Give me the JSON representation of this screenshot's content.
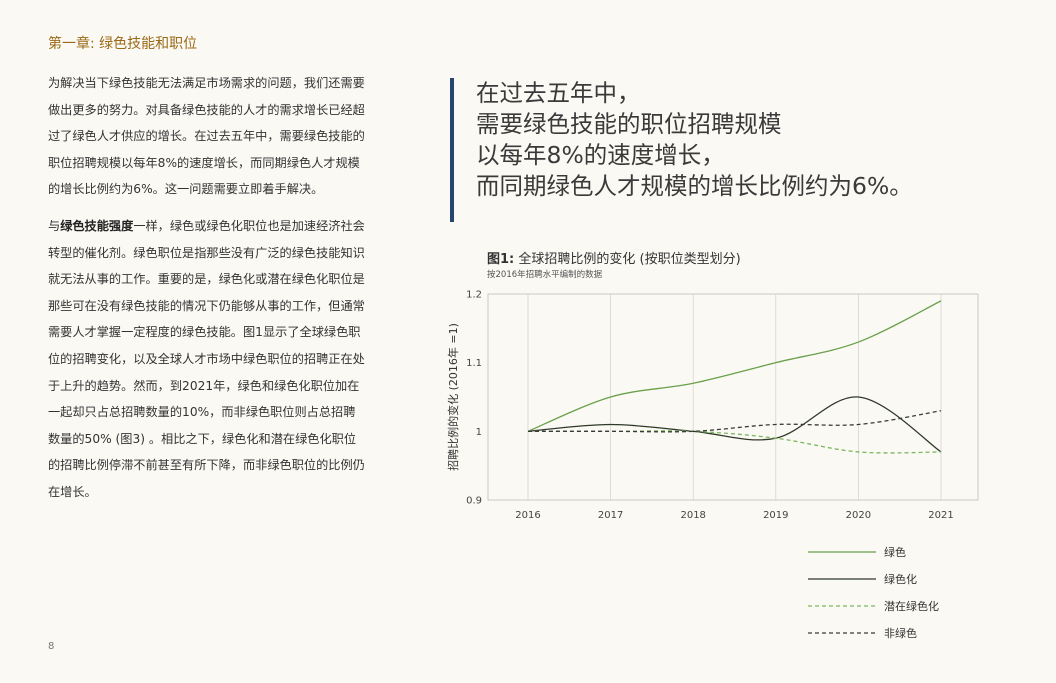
{
  "chapter_title": "第一章: 绿色技能和职位",
  "body": {
    "p1": "为解决当下绿色技能无法满足市场需求的问题，我们还需要做出更多的努力。对具备绿色技能的人才的需求增长已经超过了绿色人才供应的增长。在过去五年中，需要绿色技能的职位招聘规模以每年8%的速度增长，而同期绿色人才规模的增长比例约为6%。这一问题需要立即着手解决。",
    "p2_lead": "与",
    "p2_bold": "绿色技能强度",
    "p2_rest": "一样，绿色或绿色化职位也是加速经济社会转型的催化剂。绿色职位是指那些没有广泛的绿色技能知识就无法从事的工作。重要的是，绿色化或潜在绿色化职位是那些可在没有绿色技能的情况下仍能够从事的工作，但通常需要人才掌握一定程度的绿色技能。图1显示了全球绿色职位的招聘变化，以及全球人才市场中绿色职位的招聘正在处于上升的趋势。然而，到2021年，绿色和绿色化职位加在一起却只占总招聘数量的10%，而非绿色职位则占总招聘数量的50% (图3) 。相比之下，绿色化和潜在绿色化职位的招聘比例停滞不前甚至有所下降，而非绿色职位的比例仍在增长。"
  },
  "pull_quote": [
    "在过去五年中，",
    "需要绿色技能的职位招聘规模",
    "以每年8%的速度增长，",
    "而同期绿色人才规模的增长比例约为6%。"
  ],
  "figure": {
    "number": "图1:",
    "title": "全球招聘比例的变化 (按职位类型划分)",
    "subtitle": "按2016年招聘水平编制的数据"
  },
  "page_number": "8",
  "chart_data": {
    "type": "line",
    "x": [
      "2016",
      "2017",
      "2018",
      "2019",
      "2020",
      "2021"
    ],
    "ylabel": "招聘比例的变化 (2016年 =1)",
    "ylim": [
      0.9,
      1.2
    ],
    "yticks": [
      "1.2",
      "1.1",
      "1",
      "0.9"
    ],
    "ytick_values": [
      1.2,
      1.1,
      1.0,
      0.9
    ],
    "grid": "vertical",
    "legend_position": "bottom-right",
    "series": [
      {
        "name": "绿色",
        "values": [
          1.0,
          1.05,
          1.07,
          1.1,
          1.13,
          1.19
        ],
        "color": "#6aa04a",
        "dash": "solid"
      },
      {
        "name": "绿色化",
        "values": [
          1.0,
          1.01,
          1.0,
          0.99,
          1.05,
          0.97
        ],
        "color": "#2e3a27",
        "dash": "solid"
      },
      {
        "name": "潜在绿色化",
        "values": [
          1.0,
          1.0,
          1.0,
          0.99,
          0.97,
          0.97
        ],
        "color": "#7ab85e",
        "dash": "dashed"
      },
      {
        "name": "非绿色",
        "values": [
          1.0,
          1.0,
          1.0,
          1.01,
          1.01,
          1.03
        ],
        "color": "#3a3a3a",
        "dash": "dashed"
      }
    ]
  }
}
